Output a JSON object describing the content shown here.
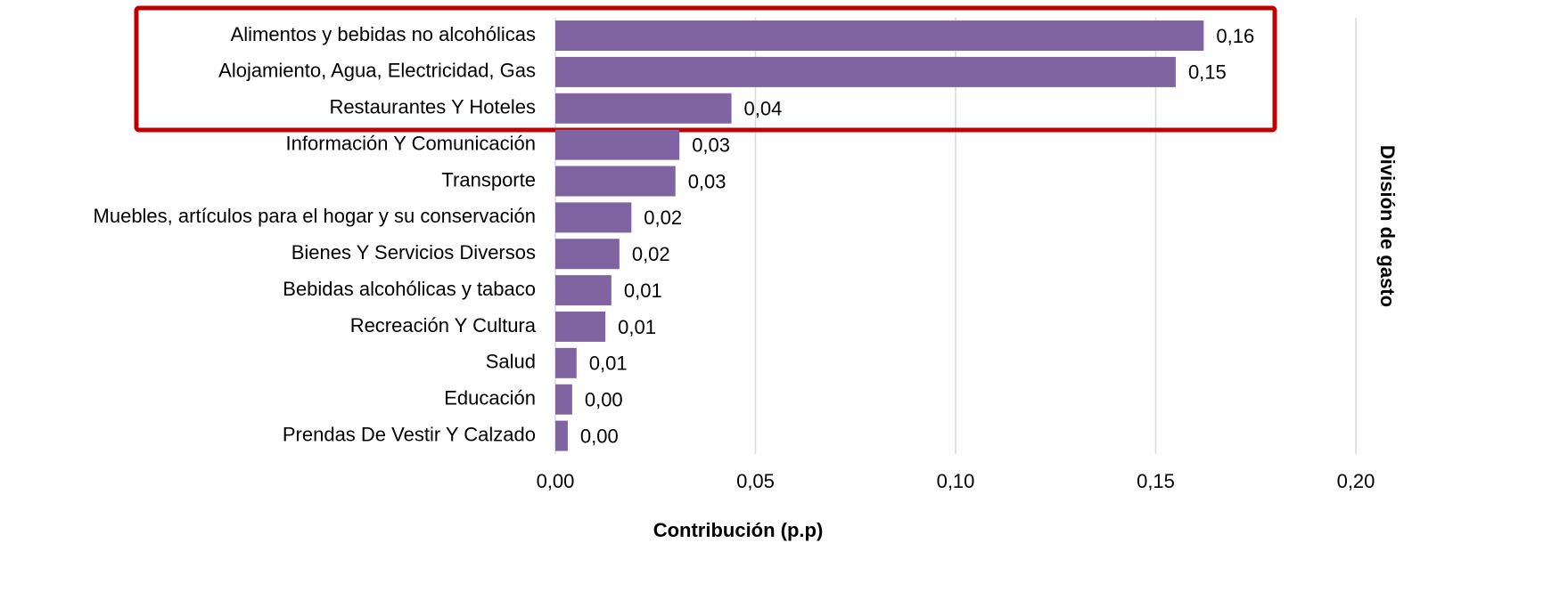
{
  "chart_data": {
    "type": "bar",
    "x_label": "Contribución (p.p)",
    "y_label": "División de gasto",
    "categories": [
      "Alimentos y bebidas no alcohólicas",
      "Alojamiento, Agua, Electricidad, Gas",
      "Restaurantes Y Hoteles",
      "Información Y Comunicación",
      "Transporte",
      "Muebles, artículos para el hogar y su conservación",
      "Bienes Y Servicios Diversos",
      "Bebidas alcohólicas y tabaco",
      "Recreación Y Cultura",
      "Salud",
      "Educación",
      "Prendas De Vestir Y Calzado"
    ],
    "values": [
      0.162,
      0.155,
      0.044,
      0.031,
      0.03,
      0.019,
      0.016,
      0.014,
      0.0125,
      0.0053,
      0.0042,
      0.0031
    ],
    "value_labels": [
      "0,16",
      "0,15",
      "0,04",
      "0,03",
      "0,03",
      "0,02",
      "0,02",
      "0,01",
      "0,01",
      "0,01",
      "0,00",
      "0,00"
    ],
    "color": "#8064a2",
    "xlim": [
      0,
      0.2
    ],
    "xticks": [
      {
        "value": 0,
        "label": "0,00"
      },
      {
        "value": 0.05,
        "label": "0,05"
      },
      {
        "value": 0.1,
        "label": "0,10"
      },
      {
        "value": 0.15,
        "label": "0,15"
      },
      {
        "value": 0.2,
        "label": "0,20"
      }
    ],
    "grid": true
  }
}
